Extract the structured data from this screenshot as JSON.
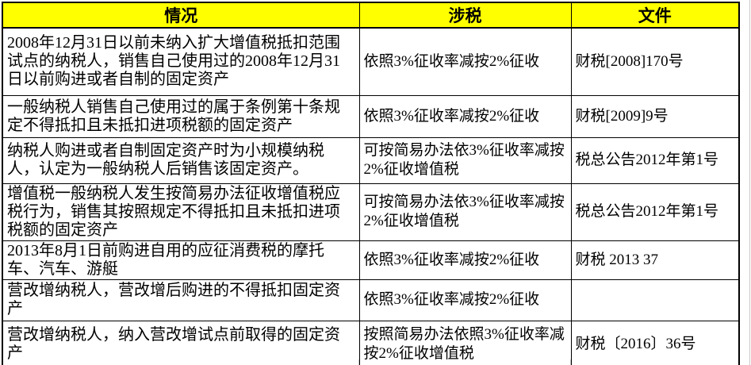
{
  "table": {
    "headers": {
      "situation": "情况",
      "tax": "涉税",
      "document": "文件"
    },
    "rows": [
      {
        "situation": "2008年12月31日以前未纳入扩大增值税抵扣范围试点的纳税人，销售自己使用过的2008年12月31日以前购进或者自制的固定资产",
        "tax": "依照3%征收率减按2%征收",
        "document": "财税[2008]170号"
      },
      {
        "situation": "一般纳税人销售自己使用过的属于条例第十条规定不得抵扣且未抵扣进项税额的固定资产",
        "tax": "依照3%征收率减按2%征收",
        "document": "财税[2009]9号"
      },
      {
        "situation": "纳税人购进或者自制固定资产时为小规模纳税人，认定为一般纳税人后销售该固定资产。",
        "tax": "可按简易办法依3%征收率减按2%征收增值税",
        "document": "税总公告2012年第1号"
      },
      {
        "situation": "增值税一般纳税人发生按简易办法征收增值税应税行为，销售其按照规定不得抵扣且未抵扣进项税额的固定资产",
        "tax": "可按简易办法依3%征收率减按2%征收增值税",
        "document": "税总公告2012年第1号"
      },
      {
        "situation": "2013年8月1日前购进自用的应征消费税的摩托车、汽车、游艇",
        "tax": "依照3%征收率减按2%征收",
        "document": "财税 2013 37"
      },
      {
        "situation": "营改增纳税人，营改增后购进的不得抵扣固定资产",
        "tax": "依照3%征收率减按2%征收",
        "document": ""
      },
      {
        "situation": "营改增纳税人，纳入营改增试点前取得的固定资产",
        "tax": "按照简易办法依照3%征收率减按2%征收增值税",
        "document": "财税〔2016〕36号"
      }
    ],
    "colors": {
      "header_bg": "#FFFF00",
      "border": "#000000",
      "text": "#000000",
      "gridline": "#C9C9C9"
    }
  }
}
